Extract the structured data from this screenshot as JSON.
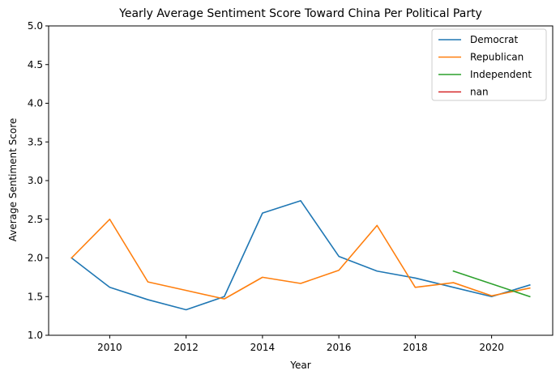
{
  "chart_data": {
    "type": "line",
    "title": "Yearly Average Sentiment Score Toward China Per Political Party",
    "xlabel": "Year",
    "ylabel": "Average Sentiment Score",
    "xlim": [
      2008.4,
      2021.6
    ],
    "ylim": [
      1.0,
      5.0
    ],
    "xticks": [
      2010,
      2012,
      2014,
      2016,
      2018,
      2020
    ],
    "xtick_labels": [
      "2010",
      "2012",
      "2014",
      "2016",
      "2018",
      "2020"
    ],
    "yticks": [
      1.0,
      1.5,
      2.0,
      2.5,
      3.0,
      3.5,
      4.0,
      4.5,
      5.0
    ],
    "ytick_labels": [
      "1.0",
      "1.5",
      "2.0",
      "2.5",
      "3.0",
      "3.5",
      "4.0",
      "4.5",
      "5.0"
    ],
    "grid": false,
    "legend_position": "top-right",
    "series": [
      {
        "name": "Democrat",
        "color": "#1f77b4",
        "x": [
          2009,
          2010,
          2011,
          2012,
          2013,
          2014,
          2015,
          2016,
          2017,
          2018,
          2019,
          2020,
          2021
        ],
        "y": [
          2.0,
          1.62,
          1.46,
          1.33,
          1.5,
          2.58,
          2.74,
          2.02,
          1.83,
          1.74,
          1.62,
          1.5,
          1.65
        ]
      },
      {
        "name": "Republican",
        "color": "#ff7f0e",
        "x": [
          2009,
          2010,
          2011,
          2012,
          2013,
          2014,
          2015,
          2016,
          2017,
          2018,
          2019,
          2020,
          2021
        ],
        "y": [
          2.0,
          2.5,
          1.69,
          1.58,
          1.47,
          1.75,
          1.67,
          1.84,
          2.42,
          1.62,
          1.68,
          1.51,
          1.61
        ]
      },
      {
        "name": "Independent",
        "color": "#2ca02c",
        "x": [
          2019,
          2021
        ],
        "y": [
          1.83,
          1.5
        ]
      },
      {
        "name": "nan",
        "color": "#d62728",
        "x": [],
        "y": []
      }
    ]
  }
}
